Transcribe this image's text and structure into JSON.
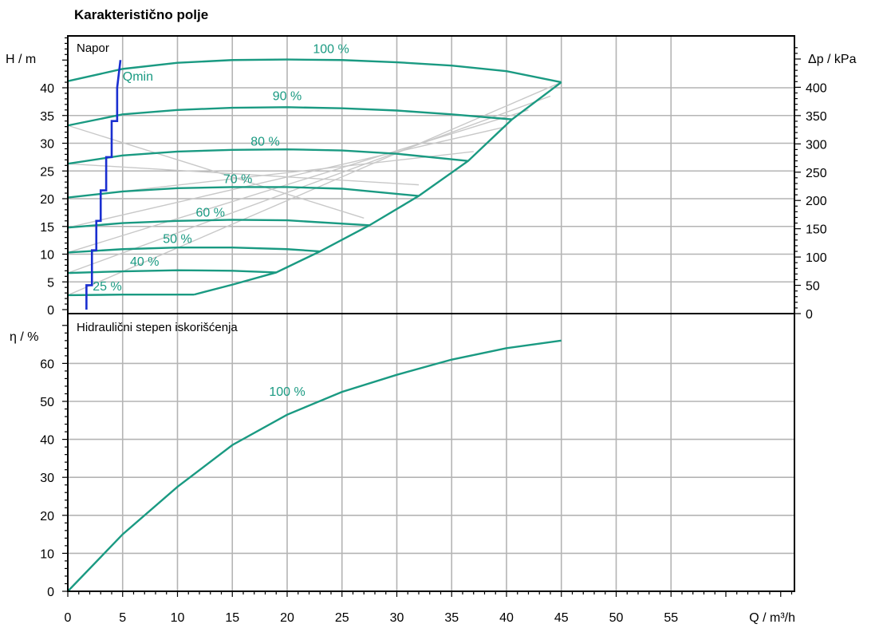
{
  "title": "Karakteristično polje",
  "colors": {
    "curve": "#1a9a82",
    "qmin": "#1a2fd0",
    "grid": "#b4b4b4",
    "efficiency_iso": "#c8c8c8",
    "frame": "#000000"
  },
  "chart_data": [
    {
      "type": "line",
      "panel_label": "Napor",
      "xlabel": "Q / m³/h",
      "ylabel": "H / m",
      "y2label": "Δp / kPa",
      "xlim": [
        0,
        66
      ],
      "ylim": [
        0,
        50
      ],
      "y2lim": [
        0,
        490
      ],
      "x_ticks": [
        "0",
        "5",
        "10",
        "15",
        "20",
        "25",
        "30",
        "35",
        "40",
        "45",
        "50",
        "55"
      ],
      "y_ticks": [
        "0",
        "5",
        "10",
        "15",
        "20",
        "25",
        "30",
        "35",
        "40"
      ],
      "y2_ticks": [
        "0",
        "50",
        "100",
        "150",
        "200",
        "250",
        "300",
        "350",
        "400"
      ],
      "grid": true,
      "series": [
        {
          "name": "100 %",
          "label_at": [
            24,
            47
          ],
          "x": [
            0,
            5,
            10,
            15,
            20,
            25,
            30,
            35,
            40,
            45
          ],
          "y": [
            41.2,
            43.4,
            44.5,
            45,
            45.1,
            45,
            44.6,
            44,
            43,
            41
          ]
        },
        {
          "name": "90 %",
          "label_at": [
            20,
            38.5
          ],
          "x": [
            0,
            5,
            10,
            15,
            20,
            25,
            30,
            35,
            40.5
          ],
          "y": [
            33.2,
            35.2,
            36,
            36.4,
            36.5,
            36.3,
            35.9,
            35.2,
            34.3
          ]
        },
        {
          "name": "80 %",
          "label_at": [
            18,
            30.3
          ],
          "x": [
            0,
            5,
            10,
            15,
            20,
            25,
            30,
            36.5
          ],
          "y": [
            26.3,
            27.8,
            28.5,
            28.8,
            28.9,
            28.7,
            28.1,
            26.8
          ]
        },
        {
          "name": "70 %",
          "label_at": [
            15.5,
            23.5
          ],
          "x": [
            0,
            5,
            10,
            15,
            20,
            25,
            32
          ],
          "y": [
            20.2,
            21.3,
            21.9,
            22.1,
            22.1,
            21.8,
            20.5
          ]
        },
        {
          "name": "60 %",
          "label_at": [
            13,
            17.5
          ],
          "x": [
            0,
            5,
            10,
            15,
            20,
            27.5
          ],
          "y": [
            14.8,
            15.6,
            16,
            16.2,
            16.1,
            15.2
          ]
        },
        {
          "name": "50 %",
          "label_at": [
            10,
            12.7
          ],
          "x": [
            0,
            5,
            10,
            15,
            20,
            23
          ],
          "y": [
            10.3,
            10.9,
            11.2,
            11.2,
            10.9,
            10.5
          ]
        },
        {
          "name": "40 %",
          "label_at": [
            7,
            8.6
          ],
          "x": [
            0,
            5,
            10,
            15,
            19
          ],
          "y": [
            6.6,
            6.9,
            7.1,
            7,
            6.7
          ]
        },
        {
          "name": "25 %",
          "label_at": [
            3.6,
            4.2
          ],
          "x": [
            0,
            5,
            11.5
          ],
          "y": [
            2.6,
            2.7,
            2.7
          ]
        },
        {
          "name": "",
          "x": [
            11.5,
            15,
            19,
            23,
            27.5,
            32,
            36.5,
            40.5,
            45
          ],
          "y": [
            2.7,
            4.5,
            6.7,
            10.5,
            15.2,
            20.5,
            26.8,
            34.3,
            41
          ]
        },
        {
          "name": "Qmin",
          "label_at": [
            5,
            42
          ],
          "x": [
            1.7,
            1.7,
            2.2,
            2.2,
            2.6,
            2.6,
            3,
            3,
            3.5,
            3.5,
            4,
            4,
            4.5,
            4.5,
            4.8
          ],
          "y": [
            0,
            4.4,
            4.4,
            10.7,
            10.7,
            16,
            16,
            21.5,
            21.5,
            27.5,
            27.5,
            34,
            34,
            40,
            45
          ]
        }
      ],
      "efficiency_isolines": [
        {
          "x": [
            0,
            45
          ],
          "y": [
            2.6,
            41
          ]
        },
        {
          "x": [
            0,
            44
          ],
          "y": [
            6.6,
            38.5
          ]
        },
        {
          "x": [
            0,
            42
          ],
          "y": [
            10.3,
            36
          ]
        },
        {
          "x": [
            0,
            40
          ],
          "y": [
            14.8,
            33
          ]
        },
        {
          "x": [
            0,
            37
          ],
          "y": [
            20.2,
            28.5
          ]
        },
        {
          "x": [
            0,
            32
          ],
          "y": [
            26.3,
            22.5
          ]
        },
        {
          "x": [
            0,
            27
          ],
          "y": [
            33.2,
            16.5
          ]
        }
      ]
    },
    {
      "type": "line",
      "panel_label": "Hidraulični stepen iskorišćenja",
      "xlabel": "Q / m³/h",
      "ylabel": "η / %",
      "xlim": [
        0,
        66
      ],
      "ylim": [
        0,
        72
      ],
      "x_ticks": [
        "0",
        "5",
        "10",
        "15",
        "20",
        "25",
        "30",
        "35",
        "40",
        "45",
        "50",
        "55"
      ],
      "y_ticks": [
        "0",
        "10",
        "20",
        "30",
        "40",
        "50",
        "60"
      ],
      "grid": true,
      "series": [
        {
          "name": "100 %",
          "label_at": [
            20,
            52.5
          ],
          "x": [
            0,
            5,
            10,
            15,
            20,
            25,
            30,
            35,
            40,
            45
          ],
          "y": [
            0,
            15,
            27.5,
            38.5,
            46.5,
            52.5,
            57,
            61,
            64,
            66
          ]
        }
      ]
    }
  ]
}
